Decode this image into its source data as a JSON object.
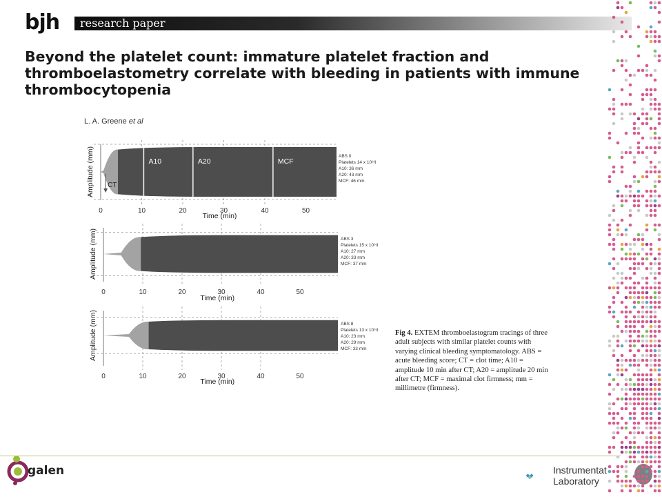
{
  "header": {
    "journal": "bjh",
    "section": "research paper"
  },
  "title": "Beyond the platelet count: immature platelet fraction and thromboelastometry correlate with bleeding in patients with immune thrombocytopenia",
  "author": {
    "name": "L. A. Greene",
    "suffix": "et al"
  },
  "figure": {
    "panels": [
      {
        "ylabel": "Amplitude (mm)",
        "xlabel": "Time (min)",
        "x_ticks": [
          "0",
          "10",
          "20",
          "30",
          "40",
          "50"
        ],
        "markers": [
          "A10",
          "A20",
          "MCF"
        ],
        "ct_label": "CT",
        "legend": [
          "ABS 0",
          "Platelets 14 x 10⁹/l",
          "A10: 36 mm",
          "A20: 43 mm",
          "MCF: 46 mm"
        ],
        "ct_min": 0.7,
        "mcf_mm": 46
      },
      {
        "ylabel": "Amplitude (mm)",
        "xlabel": "Time (min)",
        "x_ticks": [
          "0",
          "10",
          "20",
          "30",
          "40",
          "50"
        ],
        "legend": [
          "ABS 3",
          "Platelets 15 x 10⁹/l",
          "A10: 27 mm",
          "A20: 33 mm",
          "MCF: 37 mm"
        ],
        "ct_min": 4.5,
        "mcf_mm": 37
      },
      {
        "ylabel": "Amplitude (mm)",
        "xlabel": "Time (min)",
        "x_ticks": [
          "0",
          "10",
          "20",
          "30",
          "40",
          "50"
        ],
        "legend": [
          "ABS 8",
          "Platelets 13 x 10⁹/l",
          "A10: 23 mm",
          "A20: 29 mm",
          "MCF: 33 mm"
        ],
        "ct_min": 6.5,
        "mcf_mm": 33
      }
    ],
    "caption_label": "Fig 4.",
    "caption": "EXTEM thromboelastogram tracings of three adult subjects with similar platelet counts with varying clinical bleeding symptomatology. ABS = acute bleeding score; CT = clot time; A10 = amplitude 10 min after CT; A20 = amplitude 20 min after CT; MCF = maximal clot firmness; mm = millimetre (firmness)."
  },
  "footer": {
    "left_logo": "galen",
    "right_logo_line1": "Instrumentation",
    "right_logo_line2": "Laboratory"
  },
  "colors": {
    "trace_dark": "#4d4d4d",
    "trace_light": "#a3a3a3",
    "footer_line": "#b7c47a"
  },
  "dot_colors": [
    "#d65c8e",
    "#c9c9c9",
    "#e8a33d",
    "#5aa7c6",
    "#7dbb5a",
    "#9a3d8a"
  ]
}
